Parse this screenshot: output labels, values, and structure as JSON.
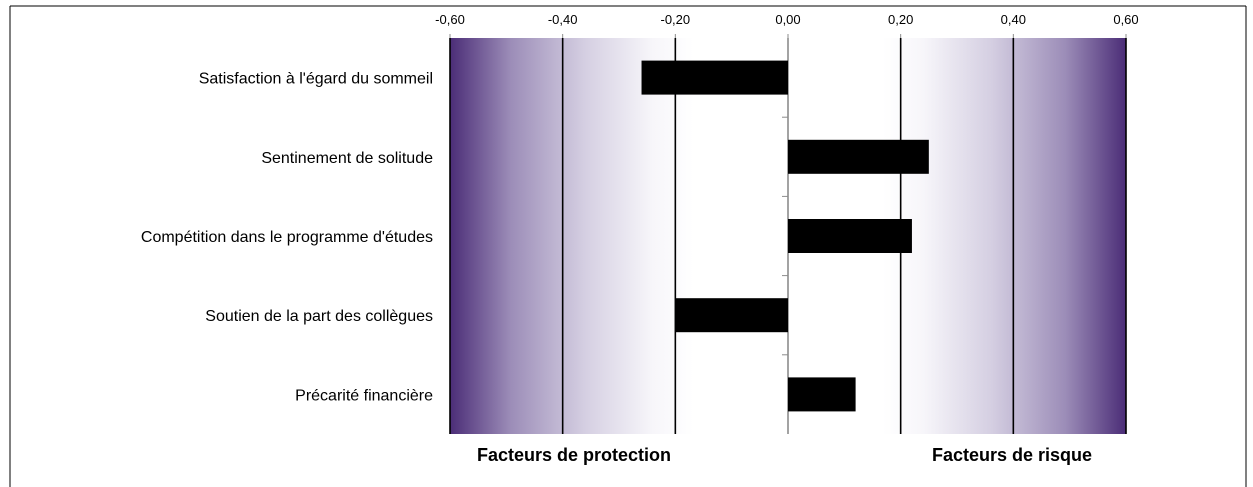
{
  "chart_data": {
    "type": "bar",
    "orientation": "horizontal",
    "categories": [
      "Satisfaction à l'égard du sommeil",
      "Sentinement de solitude",
      "Compétition dans le programme d'études",
      "Soutien de la part des collègues",
      "Précarité financière"
    ],
    "values": [
      -0.26,
      0.25,
      0.22,
      -0.2,
      0.12
    ],
    "xlim": [
      -0.6,
      0.6
    ],
    "x_ticks": [
      -0.6,
      -0.4,
      -0.2,
      0.0,
      0.2,
      0.4,
      0.6
    ],
    "x_tick_labels": [
      "-0,60",
      "-0,40",
      "-0,20",
      "0,00",
      "0,20",
      "0,40",
      "0,60"
    ],
    "x_axis_position": "top",
    "grid": true,
    "annotations": {
      "left": "Facteurs de protection",
      "right": "Facteurs de risque"
    },
    "colors": {
      "bar": "#000000",
      "gradient_edge": "#4b2d77",
      "gradient_mid": "#ffffff",
      "zero_line": "#8c8c8c"
    }
  }
}
